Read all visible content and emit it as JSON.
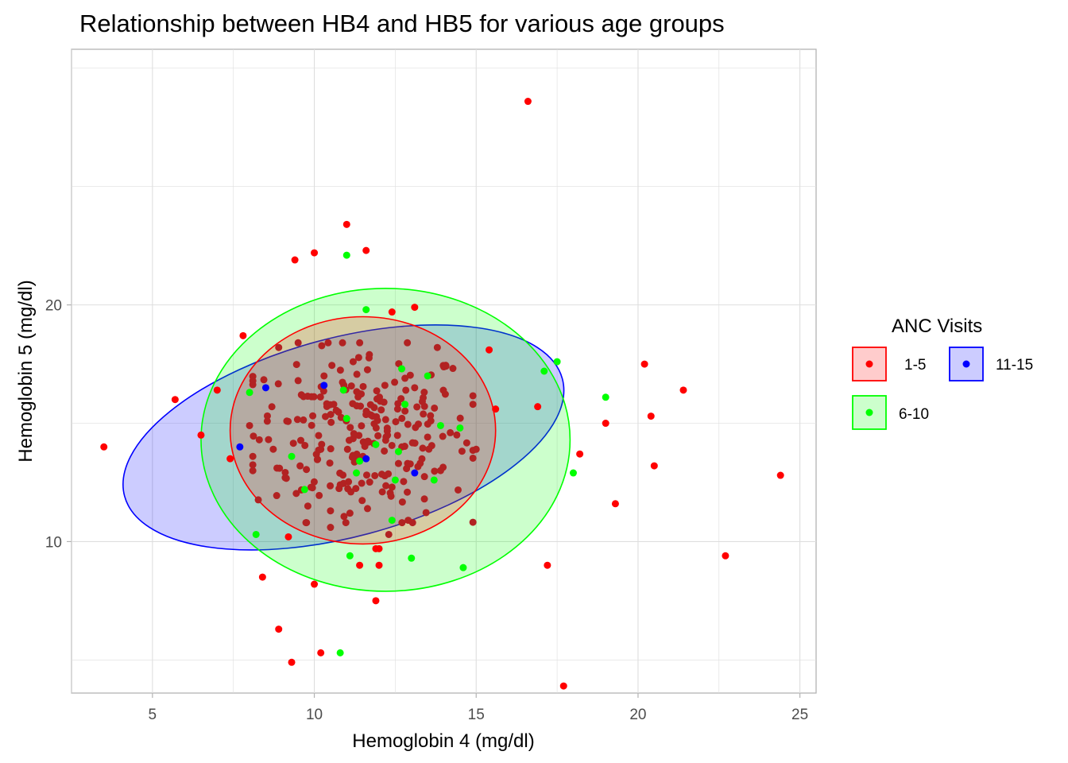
{
  "chart_data": {
    "type": "scatter",
    "title": "Relationship between HB4 and HB5 for various age groups",
    "xlabel": "Hemoglobin 4 (mg/dl)",
    "ylabel": "Hemoglobin 5 (mg/dl)",
    "xlim": [
      2.5,
      25.5
    ],
    "ylim": [
      3.6,
      30.8
    ],
    "x_ticks": [
      5,
      10,
      15,
      20,
      25
    ],
    "y_ticks": [
      10,
      20
    ],
    "x_tick_labels": [
      "5",
      "10",
      "15",
      "20",
      "25"
    ],
    "y_tick_labels": [
      "10",
      "20"
    ],
    "grid": true,
    "legend": {
      "title": "ANC Visits",
      "position": "right"
    },
    "series": [
      {
        "name": "1-5",
        "color": "#ff0000",
        "ellipse": {
          "cx": 11.5,
          "cy": 14.7,
          "rx": 4.1,
          "ry": 4.8,
          "angle": 0
        },
        "points": [
          [
            16.6,
            28.6
          ],
          [
            11.0,
            23.4
          ],
          [
            11.6,
            22.3
          ],
          [
            10.0,
            22.2
          ],
          [
            9.4,
            21.9
          ],
          [
            13.1,
            19.9
          ],
          [
            12.4,
            19.7
          ],
          [
            7.8,
            18.7
          ],
          [
            13.8,
            18.2
          ],
          [
            15.4,
            18.1
          ],
          [
            8.9,
            18.2
          ],
          [
            20.2,
            17.5
          ],
          [
            10.3,
            17.0
          ],
          [
            13.1,
            16.5
          ],
          [
            5.7,
            16.0
          ],
          [
            7.0,
            16.4
          ],
          [
            21.4,
            16.4
          ],
          [
            16.9,
            15.7
          ],
          [
            15.6,
            15.6
          ],
          [
            20.4,
            15.3
          ],
          [
            19.0,
            15.0
          ],
          [
            6.5,
            14.5
          ],
          [
            3.5,
            14.0
          ],
          [
            7.4,
            13.5
          ],
          [
            18.2,
            13.7
          ],
          [
            20.5,
            13.2
          ],
          [
            24.4,
            12.8
          ],
          [
            12.4,
            12.3
          ],
          [
            19.3,
            11.6
          ],
          [
            10.5,
            11.3
          ],
          [
            11.9,
            9.7
          ],
          [
            22.7,
            9.4
          ],
          [
            11.4,
            9.0
          ],
          [
            12.0,
            9.0
          ],
          [
            17.2,
            9.0
          ],
          [
            8.4,
            8.5
          ],
          [
            10.0,
            8.2
          ],
          [
            11.9,
            7.5
          ],
          [
            8.9,
            6.3
          ],
          [
            10.2,
            5.3
          ],
          [
            9.3,
            4.9
          ],
          [
            17.7,
            3.9
          ],
          [
            9.2,
            10.2
          ],
          [
            12.0,
            9.7
          ],
          [
            11.2,
            17.6
          ],
          [
            12.8,
            16.9
          ],
          [
            9.6,
            16.2
          ],
          [
            10.6,
            15.8
          ],
          [
            11.8,
            15.3
          ],
          [
            13.6,
            15.1
          ],
          [
            14.2,
            14.6
          ],
          [
            8.3,
            14.3
          ],
          [
            10.2,
            13.9
          ],
          [
            11.5,
            13.6
          ],
          [
            12.6,
            13.3
          ],
          [
            13.9,
            13.0
          ],
          [
            9.1,
            12.7
          ],
          [
            10.8,
            12.4
          ],
          [
            12.1,
            12.1
          ],
          [
            13.4,
            11.8
          ],
          [
            9.8,
            11.5
          ],
          [
            11.1,
            11.2
          ],
          [
            12.9,
            10.9
          ],
          [
            10.5,
            10.6
          ],
          [
            12.3,
            10.3
          ],
          [
            14.9,
            15.8
          ],
          [
            8.0,
            14.9
          ],
          [
            15.0,
            13.9
          ],
          [
            9.5,
            16.8
          ],
          [
            11.7,
            17.9
          ]
        ]
      },
      {
        "name": "6-10",
        "color": "#00ff00",
        "ellipse": {
          "cx": 12.2,
          "cy": 14.3,
          "rx": 5.7,
          "ry": 6.4,
          "angle": 0
        },
        "points": [
          [
            11.0,
            22.1
          ],
          [
            11.6,
            19.8
          ],
          [
            17.5,
            17.6
          ],
          [
            17.1,
            17.2
          ],
          [
            8.0,
            16.3
          ],
          [
            19.0,
            16.1
          ],
          [
            11.0,
            15.2
          ],
          [
            13.5,
            17.0
          ],
          [
            18.0,
            12.9
          ],
          [
            8.2,
            10.3
          ],
          [
            11.1,
            9.4
          ],
          [
            13.0,
            9.3
          ],
          [
            14.6,
            8.9
          ],
          [
            10.8,
            5.3
          ],
          [
            9.7,
            12.2
          ],
          [
            12.7,
            17.3
          ],
          [
            14.5,
            14.8
          ],
          [
            13.7,
            12.6
          ],
          [
            12.4,
            10.9
          ],
          [
            11.4,
            13.4
          ],
          [
            9.3,
            13.6
          ],
          [
            12.6,
            13.8
          ],
          [
            11.9,
            14.1
          ],
          [
            12.8,
            15.8
          ],
          [
            10.9,
            16.4
          ],
          [
            12.5,
            12.6
          ],
          [
            13.9,
            14.9
          ],
          [
            11.3,
            12.9
          ]
        ]
      },
      {
        "name": "11-15",
        "color": "#0000ff",
        "ellipse": {
          "cx": 10.9,
          "cy": 14.4,
          "rx": 7.0,
          "ry": 4.2,
          "angle": 15
        },
        "points": [
          [
            8.5,
            16.5
          ],
          [
            10.3,
            16.6
          ],
          [
            7.7,
            14.0
          ],
          [
            11.6,
            13.5
          ],
          [
            13.1,
            12.9
          ]
        ]
      }
    ],
    "dense_cluster": {
      "center": [
        11.5,
        14.6
      ],
      "spread": [
        1.7,
        1.9
      ],
      "count": 220,
      "color": "#b22222"
    }
  }
}
